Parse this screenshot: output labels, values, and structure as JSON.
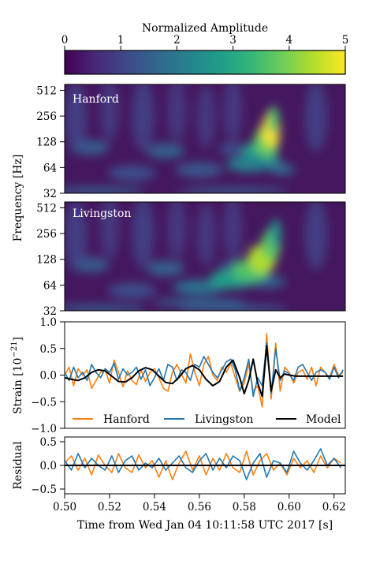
{
  "colorbar": {
    "label": "Normalized Amplitude",
    "ticks": [
      "0",
      "1",
      "2",
      "3",
      "4",
      "5"
    ],
    "range": [
      0,
      5
    ],
    "colormap": [
      "#440154",
      "#482878",
      "#3e4989",
      "#31688e",
      "#26828e",
      "#1f9e89",
      "#35b779",
      "#6ece58",
      "#b5de2b",
      "#fde725"
    ]
  },
  "spectrograms": {
    "ylabel": "Frequency [Hz]",
    "yticks": [
      "32",
      "64",
      "128",
      "256",
      "512"
    ],
    "panels": [
      {
        "label": "Hanford"
      },
      {
        "label": "Livingston"
      }
    ]
  },
  "strain": {
    "ylabel": "Strain [10^−21]",
    "ylabel_base": "Strain [10",
    "ylabel_exp": "−21",
    "ylabel_close": "]",
    "yticks": [
      "−1.0",
      "−0.5",
      "0.0",
      "0.5",
      "1.0"
    ],
    "legend": [
      "Hanford",
      "Livingston",
      "Model"
    ]
  },
  "residual": {
    "ylabel": "Residual",
    "yticks": [
      "−0.5",
      "0.0",
      "0.5"
    ]
  },
  "xaxis": {
    "label": "Time from Wed Jan 04 10:11:58 UTC 2017 [s]",
    "ticks": [
      "0.50",
      "0.52",
      "0.54",
      "0.56",
      "0.58",
      "0.60",
      "0.62"
    ]
  },
  "colors": {
    "hanford": "#ff7f0e",
    "livingston": "#1f77b4",
    "model": "#000000"
  },
  "chart_data": [
    {
      "type": "heatmap",
      "title": "Hanford",
      "xlabel": "Time from Wed Jan 04 10:11:58 UTC 2017 [s]",
      "ylabel": "Frequency [Hz]",
      "xlim": [
        0.5,
        0.625
      ],
      "ylim": [
        32,
        600
      ],
      "yscale": "log",
      "colorbar_range": [
        0,
        5
      ],
      "peak": {
        "x": 0.592,
        "y": 180,
        "value": 5.0
      }
    },
    {
      "type": "heatmap",
      "title": "Livingston",
      "xlabel": "Time from Wed Jan 04 10:11:58 UTC 2017 [s]",
      "ylabel": "Frequency [Hz]",
      "xlim": [
        0.5,
        0.625
      ],
      "ylim": [
        32,
        600
      ],
      "yscale": "log",
      "colorbar_range": [
        0,
        5
      ],
      "peak": {
        "x": 0.59,
        "y": 130,
        "value": 4.6
      }
    },
    {
      "type": "line",
      "xlabel": "Time from Wed Jan 04 10:11:58 UTC 2017 [s]",
      "ylabel": "Strain [10^−21]",
      "xlim": [
        0.5,
        0.625
      ],
      "ylim": [
        -1.0,
        1.0
      ],
      "series": [
        {
          "name": "Hanford",
          "color": "#ff7f0e",
          "x": [
            0.5,
            0.502,
            0.504,
            0.506,
            0.508,
            0.51,
            0.512,
            0.514,
            0.516,
            0.518,
            0.52,
            0.522,
            0.524,
            0.526,
            0.528,
            0.53,
            0.532,
            0.534,
            0.536,
            0.538,
            0.54,
            0.542,
            0.544,
            0.546,
            0.548,
            0.55,
            0.552,
            0.554,
            0.556,
            0.558,
            0.56,
            0.562,
            0.564,
            0.566,
            0.568,
            0.57,
            0.572,
            0.574,
            0.576,
            0.578,
            0.58,
            0.582,
            0.584,
            0.586,
            0.588,
            0.59,
            0.592,
            0.594,
            0.596,
            0.598,
            0.6,
            0.602,
            0.604,
            0.606,
            0.608,
            0.61,
            0.612,
            0.614,
            0.616,
            0.618,
            0.62,
            0.622,
            0.624
          ],
          "y": [
            0.0,
            0.15,
            -0.2,
            0.12,
            0.0,
            0.1,
            -0.25,
            -0.1,
            0.05,
            0.1,
            -0.15,
            0.28,
            0.05,
            -0.22,
            0.08,
            -0.1,
            -0.18,
            0.1,
            -0.12,
            0.05,
            0.12,
            -0.05,
            -0.25,
            -0.3,
            0.05,
            0.2,
            0.02,
            -0.15,
            0.4,
            0.05,
            -0.2,
            0.2,
            0.35,
            0.0,
            -0.1,
            0.15,
            0.05,
            0.22,
            -0.05,
            -0.3,
            -0.15,
            0.2,
            -0.3,
            -0.2,
            -0.6,
            0.78,
            -0.45,
            0.6,
            -0.3,
            0.15,
            0.05,
            -0.15,
            0.05,
            0.1,
            -0.08,
            0.15,
            -0.2,
            0.15,
            0.05,
            -0.05,
            0.2,
            0.0,
            0.05
          ]
        },
        {
          "name": "Livingston",
          "color": "#1f77b4",
          "x": [
            0.5,
            0.502,
            0.504,
            0.506,
            0.508,
            0.51,
            0.512,
            0.514,
            0.516,
            0.518,
            0.52,
            0.522,
            0.524,
            0.526,
            0.528,
            0.53,
            0.532,
            0.534,
            0.536,
            0.538,
            0.54,
            0.542,
            0.544,
            0.546,
            0.548,
            0.55,
            0.552,
            0.554,
            0.556,
            0.558,
            0.56,
            0.562,
            0.564,
            0.566,
            0.568,
            0.57,
            0.572,
            0.574,
            0.576,
            0.578,
            0.58,
            0.582,
            0.584,
            0.586,
            0.588,
            0.59,
            0.592,
            0.594,
            0.596,
            0.598,
            0.6,
            0.602,
            0.604,
            0.606,
            0.608,
            0.61,
            0.612,
            0.614,
            0.616,
            0.618,
            0.62,
            0.622,
            0.624
          ],
          "y": [
            0.05,
            -0.1,
            0.15,
            -0.05,
            0.05,
            -0.1,
            0.2,
            0.05,
            -0.05,
            0.12,
            0.05,
            0.22,
            -0.08,
            0.12,
            0.0,
            0.05,
            0.15,
            -0.08,
            0.1,
            -0.2,
            -0.05,
            0.12,
            -0.1,
            0.2,
            0.15,
            -0.1,
            0.1,
            0.05,
            -0.1,
            0.2,
            0.15,
            0.35,
            0.2,
            0.05,
            -0.05,
            0.1,
            0.25,
            0.3,
            0.1,
            -0.3,
            -0.05,
            0.3,
            -0.4,
            -0.05,
            -0.2,
            0.6,
            -0.35,
            0.5,
            -0.1,
            0.08,
            0.02,
            -0.1,
            0.15,
            0.2,
            0.05,
            -0.1,
            0.05,
            0.1,
            0.05,
            -0.08,
            0.15,
            -0.05,
            0.1
          ]
        },
        {
          "name": "Model",
          "color": "#000000",
          "x": [
            0.5,
            0.503,
            0.506,
            0.509,
            0.512,
            0.515,
            0.518,
            0.521,
            0.524,
            0.527,
            0.53,
            0.533,
            0.536,
            0.539,
            0.542,
            0.545,
            0.548,
            0.551,
            0.554,
            0.557,
            0.56,
            0.563,
            0.566,
            0.569,
            0.572,
            0.575,
            0.578,
            0.58,
            0.582,
            0.584,
            0.586,
            0.588,
            0.59,
            0.592,
            0.594,
            0.596,
            0.598,
            0.6,
            0.603,
            0.606,
            0.609,
            0.612,
            0.615,
            0.618,
            0.621,
            0.624
          ],
          "y": [
            -0.05,
            -0.08,
            -0.1,
            -0.05,
            0.05,
            0.1,
            0.08,
            -0.02,
            -0.12,
            -0.13,
            -0.05,
            0.08,
            0.14,
            0.1,
            -0.02,
            -0.14,
            -0.16,
            -0.04,
            0.12,
            0.18,
            0.1,
            -0.08,
            -0.2,
            -0.12,
            0.15,
            0.28,
            -0.05,
            -0.35,
            -0.1,
            0.3,
            -0.15,
            -0.4,
            0.55,
            -0.3,
            0.1,
            -0.05,
            0.02,
            0.0,
            -0.02,
            -0.02,
            -0.02,
            -0.02,
            -0.02,
            -0.02,
            -0.02,
            -0.02
          ]
        }
      ],
      "legend": "bottom"
    },
    {
      "type": "line",
      "xlabel": "Time from Wed Jan 04 10:11:58 UTC 2017 [s]",
      "ylabel": "Residual",
      "xlim": [
        0.5,
        0.625
      ],
      "ylim": [
        -0.6,
        0.6
      ],
      "series": [
        {
          "name": "Hanford",
          "color": "#ff7f0e",
          "x": [
            0.5,
            0.503,
            0.506,
            0.509,
            0.512,
            0.515,
            0.518,
            0.521,
            0.524,
            0.527,
            0.53,
            0.533,
            0.536,
            0.539,
            0.542,
            0.545,
            0.548,
            0.551,
            0.554,
            0.557,
            0.56,
            0.563,
            0.566,
            0.569,
            0.572,
            0.575,
            0.578,
            0.581,
            0.584,
            0.587,
            0.59,
            0.593,
            0.596,
            0.599,
            0.602,
            0.605,
            0.608,
            0.611,
            0.614,
            0.617,
            0.62,
            0.623
          ],
          "y": [
            0.05,
            0.2,
            -0.1,
            0.15,
            -0.2,
            0.22,
            0.0,
            -0.15,
            0.25,
            -0.05,
            -0.15,
            0.22,
            -0.05,
            0.1,
            -0.25,
            0.1,
            -0.3,
            0.05,
            0.3,
            -0.1,
            0.2,
            -0.2,
            0.15,
            -0.1,
            0.25,
            -0.05,
            -0.15,
            0.3,
            -0.2,
            0.1,
            0.25,
            -0.1,
            0.05,
            -0.2,
            0.15,
            -0.05,
            0.1,
            -0.15,
            0.2,
            -0.05,
            0.15,
            0.05
          ]
        },
        {
          "name": "Livingston",
          "color": "#1f77b4",
          "x": [
            0.5,
            0.503,
            0.506,
            0.509,
            0.512,
            0.515,
            0.518,
            0.521,
            0.524,
            0.527,
            0.53,
            0.533,
            0.536,
            0.539,
            0.542,
            0.545,
            0.548,
            0.551,
            0.554,
            0.557,
            0.56,
            0.563,
            0.566,
            0.569,
            0.572,
            0.575,
            0.578,
            0.581,
            0.584,
            0.587,
            0.59,
            0.593,
            0.596,
            0.599,
            0.602,
            0.605,
            0.608,
            0.611,
            0.614,
            0.617,
            0.62,
            0.623
          ],
          "y": [
            0.1,
            -0.1,
            0.25,
            -0.05,
            0.15,
            0.0,
            -0.1,
            0.2,
            -0.15,
            0.1,
            0.2,
            -0.1,
            0.05,
            -0.05,
            0.15,
            -0.1,
            0.05,
            0.2,
            -0.05,
            -0.15,
            0.1,
            0.25,
            -0.1,
            0.15,
            -0.05,
            0.2,
            0.1,
            -0.3,
            0.05,
            0.25,
            -0.25,
            0.1,
            0.05,
            -0.15,
            0.3,
            0.05,
            -0.1,
            0.1,
            0.35,
            0.0,
            0.15,
            -0.05
          ]
        },
        {
          "name": "Model",
          "color": "#000000",
          "x": [
            0.5,
            0.625
          ],
          "y": [
            0.0,
            0.0
          ]
        }
      ]
    }
  ]
}
